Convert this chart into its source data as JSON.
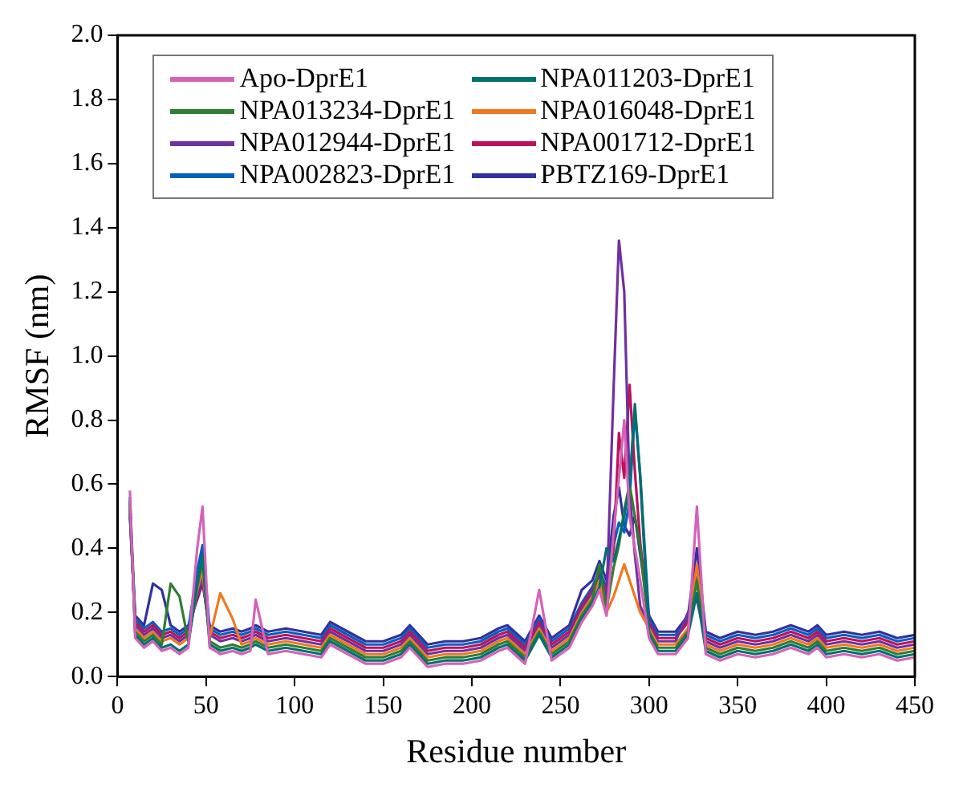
{
  "chart_data": {
    "type": "line",
    "xlabel": "Residue number",
    "ylabel": "RMSF (nm)",
    "x": [
      7,
      10,
      15,
      20,
      25,
      30,
      35,
      40,
      45,
      48,
      52,
      58,
      65,
      70,
      75,
      78,
      85,
      95,
      105,
      115,
      120,
      130,
      140,
      150,
      160,
      165,
      175,
      185,
      195,
      205,
      215,
      220,
      230,
      238,
      245,
      255,
      262,
      268,
      272,
      276,
      280,
      283,
      286,
      289,
      292,
      295,
      300,
      305,
      315,
      322,
      327,
      332,
      340,
      350,
      360,
      370,
      380,
      390,
      395,
      400,
      410,
      420,
      430,
      440,
      450
    ],
    "series": [
      {
        "name": "Apo-DprE1",
        "color": "#d462b8",
        "values": [
          0.58,
          0.12,
          0.09,
          0.11,
          0.08,
          0.09,
          0.07,
          0.09,
          0.4,
          0.53,
          0.09,
          0.07,
          0.08,
          0.07,
          0.08,
          0.24,
          0.07,
          0.08,
          0.07,
          0.06,
          0.1,
          0.07,
          0.04,
          0.04,
          0.06,
          0.09,
          0.03,
          0.04,
          0.04,
          0.05,
          0.08,
          0.09,
          0.04,
          0.27,
          0.05,
          0.09,
          0.17,
          0.22,
          0.27,
          0.19,
          0.45,
          0.62,
          0.8,
          0.5,
          0.4,
          0.3,
          0.12,
          0.07,
          0.07,
          0.12,
          0.53,
          0.07,
          0.05,
          0.07,
          0.06,
          0.07,
          0.09,
          0.07,
          0.09,
          0.06,
          0.07,
          0.06,
          0.07,
          0.05,
          0.06
        ]
      },
      {
        "name": "NPA011203-DprE1",
        "color": "#007070",
        "values": [
          0.55,
          0.13,
          0.1,
          0.12,
          0.09,
          0.1,
          0.08,
          0.1,
          0.29,
          0.38,
          0.1,
          0.08,
          0.09,
          0.08,
          0.09,
          0.1,
          0.08,
          0.09,
          0.08,
          0.07,
          0.11,
          0.08,
          0.05,
          0.05,
          0.07,
          0.1,
          0.04,
          0.05,
          0.05,
          0.06,
          0.09,
          0.1,
          0.05,
          0.13,
          0.06,
          0.1,
          0.18,
          0.23,
          0.28,
          0.4,
          0.36,
          0.43,
          0.5,
          0.6,
          0.85,
          0.62,
          0.13,
          0.08,
          0.08,
          0.13,
          0.26,
          0.08,
          0.06,
          0.08,
          0.07,
          0.08,
          0.1,
          0.08,
          0.1,
          0.07,
          0.08,
          0.07,
          0.08,
          0.06,
          0.07
        ]
      },
      {
        "name": "NPA013234-DprE1",
        "color": "#2e7d32",
        "values": [
          0.54,
          0.14,
          0.11,
          0.13,
          0.1,
          0.29,
          0.25,
          0.11,
          0.28,
          0.36,
          0.11,
          0.09,
          0.1,
          0.09,
          0.1,
          0.11,
          0.09,
          0.1,
          0.09,
          0.08,
          0.12,
          0.09,
          0.06,
          0.06,
          0.08,
          0.11,
          0.05,
          0.06,
          0.06,
          0.07,
          0.1,
          0.11,
          0.06,
          0.14,
          0.07,
          0.11,
          0.19,
          0.24,
          0.35,
          0.21,
          0.34,
          0.41,
          0.52,
          0.6,
          0.5,
          0.4,
          0.14,
          0.09,
          0.09,
          0.14,
          0.3,
          0.09,
          0.07,
          0.09,
          0.08,
          0.09,
          0.11,
          0.09,
          0.11,
          0.08,
          0.09,
          0.08,
          0.09,
          0.07,
          0.08
        ]
      },
      {
        "name": "NPA016048-DprE1",
        "color": "#f07820",
        "values": [
          0.53,
          0.15,
          0.12,
          0.14,
          0.11,
          0.12,
          0.1,
          0.12,
          0.27,
          0.33,
          0.12,
          0.26,
          0.18,
          0.1,
          0.11,
          0.12,
          0.1,
          0.11,
          0.1,
          0.09,
          0.13,
          0.1,
          0.07,
          0.07,
          0.09,
          0.12,
          0.06,
          0.07,
          0.07,
          0.08,
          0.11,
          0.12,
          0.07,
          0.15,
          0.08,
          0.12,
          0.2,
          0.25,
          0.3,
          0.2,
          0.25,
          0.3,
          0.35,
          0.3,
          0.25,
          0.2,
          0.15,
          0.1,
          0.1,
          0.15,
          0.35,
          0.1,
          0.08,
          0.1,
          0.09,
          0.1,
          0.12,
          0.1,
          0.12,
          0.09,
          0.1,
          0.09,
          0.1,
          0.08,
          0.09
        ]
      },
      {
        "name": "NPA012944-DprE1",
        "color": "#7030a0",
        "values": [
          0.52,
          0.16,
          0.13,
          0.15,
          0.12,
          0.13,
          0.11,
          0.13,
          0.26,
          0.31,
          0.13,
          0.11,
          0.12,
          0.11,
          0.12,
          0.13,
          0.11,
          0.12,
          0.11,
          0.1,
          0.14,
          0.11,
          0.08,
          0.08,
          0.1,
          0.13,
          0.07,
          0.08,
          0.08,
          0.09,
          0.12,
          0.13,
          0.08,
          0.16,
          0.09,
          0.13,
          0.21,
          0.26,
          0.31,
          0.24,
          0.9,
          1.36,
          1.2,
          0.58,
          0.38,
          0.22,
          0.16,
          0.11,
          0.11,
          0.2,
          0.24,
          0.11,
          0.09,
          0.11,
          0.1,
          0.11,
          0.13,
          0.11,
          0.13,
          0.1,
          0.11,
          0.1,
          0.11,
          0.09,
          0.1
        ]
      },
      {
        "name": "NPA001712-DprE1",
        "color": "#c0105a",
        "values": [
          0.51,
          0.17,
          0.14,
          0.16,
          0.13,
          0.14,
          0.12,
          0.14,
          0.25,
          0.3,
          0.14,
          0.12,
          0.13,
          0.12,
          0.13,
          0.14,
          0.12,
          0.13,
          0.12,
          0.11,
          0.15,
          0.12,
          0.09,
          0.09,
          0.11,
          0.14,
          0.08,
          0.09,
          0.09,
          0.1,
          0.13,
          0.14,
          0.09,
          0.17,
          0.1,
          0.14,
          0.22,
          0.27,
          0.32,
          0.26,
          0.4,
          0.76,
          0.62,
          0.91,
          0.64,
          0.42,
          0.17,
          0.12,
          0.12,
          0.17,
          0.3,
          0.12,
          0.1,
          0.12,
          0.11,
          0.12,
          0.14,
          0.12,
          0.14,
          0.11,
          0.12,
          0.11,
          0.12,
          0.1,
          0.11
        ]
      },
      {
        "name": "NPA002823-DprE1",
        "color": "#0060c0",
        "values": [
          0.56,
          0.18,
          0.15,
          0.17,
          0.14,
          0.15,
          0.13,
          0.15,
          0.33,
          0.41,
          0.15,
          0.13,
          0.14,
          0.13,
          0.14,
          0.15,
          0.13,
          0.14,
          0.13,
          0.12,
          0.16,
          0.13,
          0.1,
          0.1,
          0.12,
          0.15,
          0.09,
          0.1,
          0.1,
          0.11,
          0.14,
          0.15,
          0.1,
          0.18,
          0.11,
          0.15,
          0.23,
          0.28,
          0.33,
          0.28,
          0.41,
          0.48,
          0.45,
          0.55,
          0.83,
          0.63,
          0.18,
          0.13,
          0.13,
          0.18,
          0.31,
          0.13,
          0.11,
          0.13,
          0.12,
          0.13,
          0.15,
          0.13,
          0.15,
          0.12,
          0.13,
          0.12,
          0.13,
          0.11,
          0.12
        ]
      },
      {
        "name": "PBTZ169-DprE1",
        "color": "#3030a0",
        "values": [
          0.5,
          0.19,
          0.16,
          0.29,
          0.27,
          0.16,
          0.14,
          0.16,
          0.24,
          0.29,
          0.16,
          0.14,
          0.15,
          0.14,
          0.15,
          0.16,
          0.14,
          0.15,
          0.14,
          0.13,
          0.17,
          0.14,
          0.11,
          0.11,
          0.13,
          0.16,
          0.1,
          0.11,
          0.11,
          0.12,
          0.15,
          0.16,
          0.11,
          0.19,
          0.12,
          0.16,
          0.27,
          0.3,
          0.36,
          0.3,
          0.5,
          0.59,
          0.47,
          0.44,
          0.5,
          0.38,
          0.19,
          0.14,
          0.14,
          0.19,
          0.4,
          0.14,
          0.12,
          0.14,
          0.13,
          0.14,
          0.16,
          0.14,
          0.16,
          0.13,
          0.14,
          0.13,
          0.14,
          0.12,
          0.13
        ]
      }
    ],
    "xlim": [
      0,
      450
    ],
    "xticks": [
      0,
      50,
      100,
      150,
      200,
      250,
      300,
      350,
      400,
      450
    ],
    "ylim": [
      0,
      2.0
    ],
    "yticks": [
      {
        "value": 0,
        "label": "0.0"
      },
      {
        "value": 0.2,
        "label": "0.2"
      },
      {
        "value": 0.4,
        "label": "0.4"
      },
      {
        "value": 0.6,
        "label": "0.6"
      },
      {
        "value": 0.8,
        "label": "0.8"
      },
      {
        "value": 1.0,
        "label": "1.0"
      },
      {
        "value": 1.2,
        "label": "1.2"
      },
      {
        "value": 1.4,
        "label": "1.4"
      },
      {
        "value": 1.6,
        "label": "1.6"
      },
      {
        "value": 1.8,
        "label": "1.8"
      },
      {
        "value": 2.0,
        "label": "2.0"
      }
    ],
    "grid": false,
    "legend": "top",
    "marker": "none",
    "line_style": "solid"
  }
}
